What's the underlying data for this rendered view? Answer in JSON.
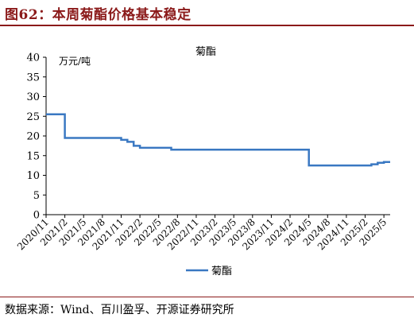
{
  "figure": {
    "title": "图62：本周菊酯价格基本稳定",
    "source": "数据来源：Wind、百川盈孚、开源证券研究所"
  },
  "chart_data": {
    "type": "line",
    "title": "菊酯",
    "unit": "万元/吨",
    "xlabel": "",
    "ylabel": "万元/吨",
    "x_ticks": [
      "2020/11",
      "2021/2",
      "2021/5",
      "2021/8",
      "2021/11",
      "2022/2",
      "2022/5",
      "2022/8",
      "2022/11",
      "2023/2",
      "2023/5",
      "2023/8",
      "2023/11",
      "2024/2",
      "2024/5",
      "2024/8",
      "2024/11",
      "2025/2",
      "2025/5"
    ],
    "y_ticks": [
      0,
      5,
      10,
      15,
      20,
      25,
      30,
      35,
      40
    ],
    "ylim": [
      0,
      40
    ],
    "xlim": [
      "2020/11",
      "2025/6"
    ],
    "grid": false,
    "legend_position": "bottom",
    "series": [
      {
        "name": "菊酯",
        "color": "#3a78c2",
        "points": [
          [
            "2020/11",
            25.5
          ],
          [
            "2021/2",
            25.5
          ],
          [
            "2021/2",
            19.5
          ],
          [
            "2021/11",
            19.5
          ],
          [
            "2021/11",
            19.0
          ],
          [
            "2021/12",
            19.0
          ],
          [
            "2021/12",
            18.5
          ],
          [
            "2022/1",
            18.5
          ],
          [
            "2022/1",
            17.5
          ],
          [
            "2022/2",
            17.5
          ],
          [
            "2022/2",
            17.0
          ],
          [
            "2022/7",
            17.0
          ],
          [
            "2022/7",
            16.5
          ],
          [
            "2024/5",
            16.5
          ],
          [
            "2024/5",
            12.5
          ],
          [
            "2025/3",
            12.5
          ],
          [
            "2025/3",
            12.8
          ],
          [
            "2025/4",
            12.8
          ],
          [
            "2025/4",
            13.2
          ],
          [
            "2025/5",
            13.2
          ],
          [
            "2025/5",
            13.4
          ],
          [
            "2025/6",
            13.4
          ]
        ]
      }
    ]
  }
}
